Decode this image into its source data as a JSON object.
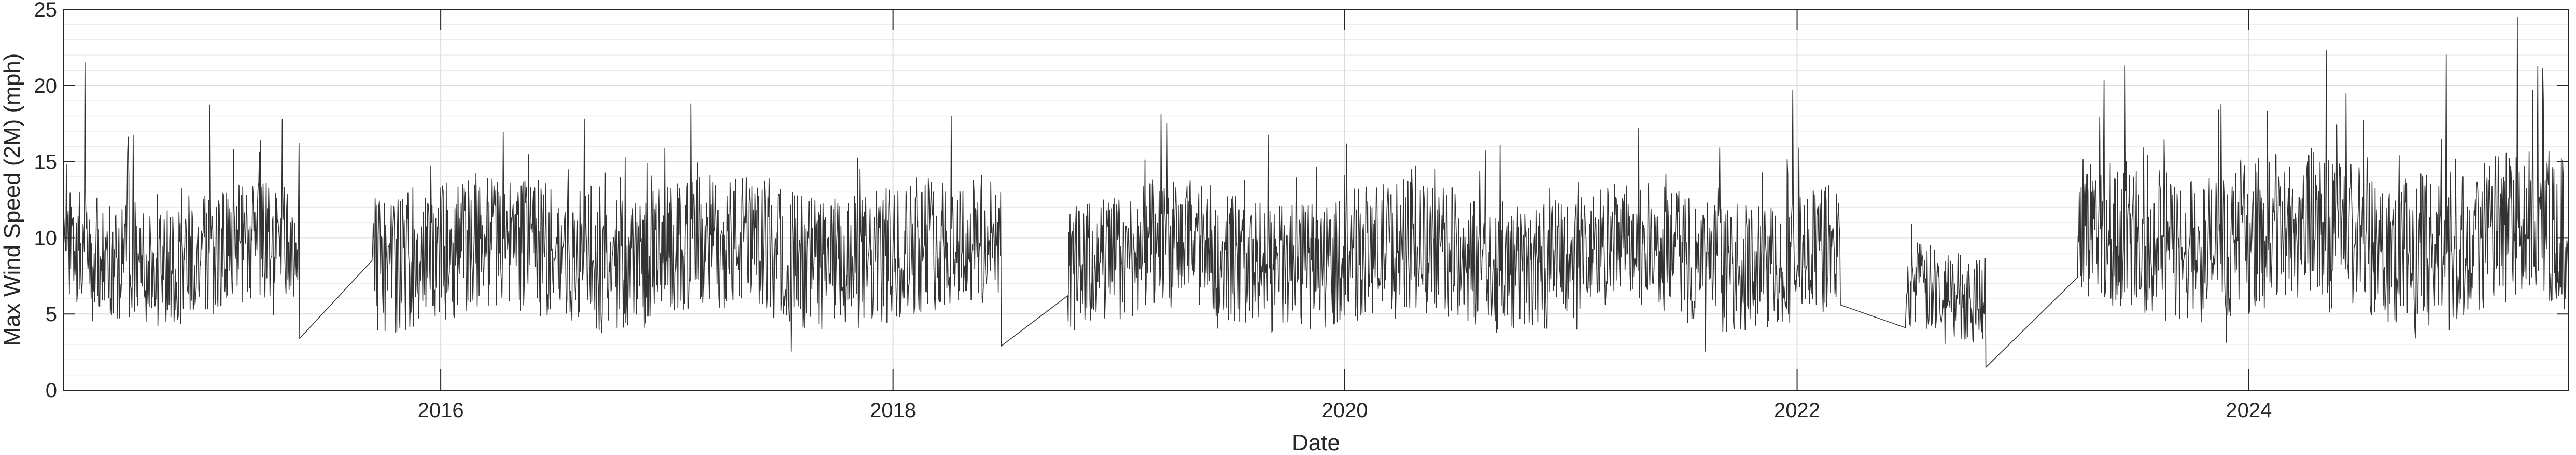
{
  "chart_data": {
    "type": "line",
    "title": "",
    "xlabel": "Date",
    "ylabel": "Max Wind Speed (2M) (mph)",
    "xlim": [
      "2014-05-01",
      "2025-06-01"
    ],
    "ylim": [
      0,
      25
    ],
    "x_ticks": [
      "2016",
      "2018",
      "2020",
      "2022",
      "2024"
    ],
    "y_ticks": [
      "0",
      "5",
      "10",
      "15",
      "20",
      "25"
    ],
    "grid": true,
    "minor_grid": true,
    "legend": "none",
    "line_color": "#333333",
    "series": [
      {
        "x_start": "2014-05-01",
        "x_end": "2025-06-01",
        "sampling": "daily",
        "segments": [
          {
            "start": "2014-05-01",
            "end": "2015-05-18",
            "typical_low": 5,
            "typical_high": 13,
            "peak": 21.5
          },
          {
            "start": "2015-09-12",
            "end": "2018-06-25",
            "typical_low": 4.5,
            "typical_high": 13.5,
            "peak": 18.8
          },
          {
            "start": "2018-10-10",
            "end": "2022-03-12",
            "typical_low": 4.5,
            "typical_high": 13,
            "peak": 19.7
          },
          {
            "start": "2022-06-25",
            "end": "2022-11-02",
            "typical_low": 4,
            "typical_high": 10,
            "peak": 13.5
          },
          {
            "start": "2023-03-30",
            "end": "2025-06-01",
            "typical_low": 5,
            "typical_high": 15,
            "peak": 24.5
          }
        ],
        "notable_points": [
          {
            "x": "2014-06-05",
            "y": 21.5
          },
          {
            "x": "2015-05-17",
            "y": 16.2
          },
          {
            "x": "2015-05-18",
            "y": 3.4
          },
          {
            "x": "2015-09-12",
            "y": 8.5
          },
          {
            "x": "2016-08-20",
            "y": 17.8
          },
          {
            "x": "2017-02-08",
            "y": 18.8
          },
          {
            "x": "2018-04-05",
            "y": 18.0
          },
          {
            "x": "2018-06-25",
            "y": 2.9
          },
          {
            "x": "2018-10-10",
            "y": 6.2
          },
          {
            "x": "2019-03-10",
            "y": 18.1
          },
          {
            "x": "2021-04-20",
            "y": 17.2
          },
          {
            "x": "2021-12-25",
            "y": 19.7
          },
          {
            "x": "2022-03-12",
            "y": 5.6
          },
          {
            "x": "2022-06-25",
            "y": 4.1
          },
          {
            "x": "2022-11-02",
            "y": 1.5
          },
          {
            "x": "2023-03-30",
            "y": 7.4
          },
          {
            "x": "2023-06-15",
            "y": 21.3
          },
          {
            "x": "2024-05-05",
            "y": 22.3
          },
          {
            "x": "2024-11-15",
            "y": 22.0
          },
          {
            "x": "2025-03-10",
            "y": 24.5
          },
          {
            "x": "2025-04-20",
            "y": 21.1
          }
        ]
      }
    ]
  }
}
